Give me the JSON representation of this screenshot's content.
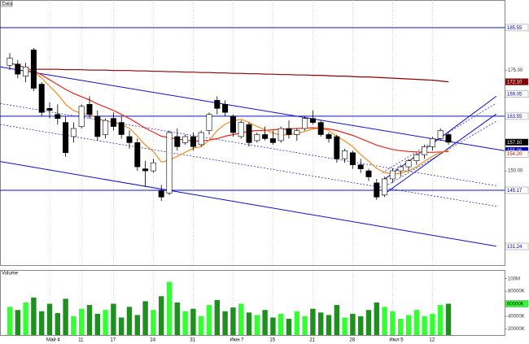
{
  "chart_data": {
    "type": "candlestick",
    "label": "Data",
    "categories": [
      null,
      null,
      null,
      null,
      null,
      "Май 4",
      null,
      null,
      null,
      "11",
      null,
      null,
      null,
      "17",
      null,
      null,
      null,
      null,
      "24",
      null,
      null,
      null,
      null,
      "31",
      null,
      null,
      null,
      null,
      "Июн 7",
      null,
      null,
      null,
      null,
      "15",
      null,
      null,
      null,
      null,
      "21",
      null,
      null,
      null,
      null,
      "28",
      null,
      null,
      null,
      null,
      "Июл 5",
      null,
      null,
      null,
      null,
      "12",
      null,
      null
    ],
    "open": [
      176.2,
      176.5,
      173.5,
      180.0,
      171.5,
      165.5,
      164.0,
      162.0,
      158.5,
      161.0,
      166.5,
      163.5,
      159.0,
      163.0,
      162.0,
      158.5,
      157.0,
      150.5,
      150.0,
      145.0,
      144.5,
      158.5,
      157.0,
      158.5,
      156.5,
      160.0,
      167.5,
      166.5,
      163.5,
      158.5,
      161.5,
      157.5,
      159.0,
      158.0,
      157.5,
      160.5,
      159.0,
      160.5,
      163.0,
      162.0,
      159.0,
      158.5,
      153.0,
      154.5,
      151.5,
      150.0,
      147.0,
      144.0,
      148.0,
      150.0,
      151.0,
      152.5,
      154.0,
      156.0,
      158.0,
      159.0
    ],
    "high": [
      179.2,
      177.5,
      176.8,
      180.5,
      172.0,
      167.0,
      166.5,
      163.5,
      162.0,
      166.5,
      168.5,
      165.0,
      163.0,
      164.5,
      163.5,
      160.0,
      158.0,
      152.5,
      153.0,
      146.5,
      160.0,
      160.5,
      159.0,
      159.5,
      160.0,
      164.5,
      168.5,
      167.5,
      164.0,
      162.5,
      162.0,
      159.5,
      161.0,
      160.0,
      161.0,
      162.5,
      160.5,
      163.5,
      165.0,
      162.5,
      159.5,
      159.0,
      155.5,
      155.0,
      153.0,
      150.5,
      148.0,
      148.5,
      150.5,
      151.5,
      153.0,
      154.5,
      156.5,
      158.5,
      160.5,
      159.5
    ],
    "low": [
      175.0,
      173.0,
      172.0,
      169.8,
      163.5,
      163.0,
      161.5,
      153.5,
      157.0,
      160.5,
      163.0,
      157.5,
      158.0,
      160.0,
      158.0,
      155.5,
      150.0,
      146.0,
      149.5,
      142.5,
      144.0,
      155.0,
      156.5,
      155.0,
      156.0,
      159.0,
      164.0,
      163.5,
      158.5,
      158.0,
      156.0,
      157.0,
      157.5,
      156.5,
      157.0,
      158.0,
      157.5,
      160.0,
      161.5,
      158.5,
      157.0,
      152.0,
      152.0,
      150.5,
      149.5,
      147.5,
      142.8,
      143.5,
      147.0,
      148.5,
      150.0,
      151.5,
      153.0,
      155.0,
      157.5,
      156.5
    ],
    "close": [
      178.0,
      174.0,
      175.8,
      170.5,
      164.5,
      165.0,
      163.0,
      154.5,
      160.5,
      166.0,
      164.0,
      158.5,
      162.5,
      161.0,
      159.0,
      157.0,
      151.0,
      150.0,
      152.0,
      143.5,
      159.5,
      156.0,
      158.5,
      156.0,
      159.5,
      164.0,
      165.5,
      164.5,
      159.5,
      162.0,
      157.0,
      159.0,
      158.0,
      157.0,
      160.5,
      159.0,
      160.0,
      163.0,
      162.0,
      159.0,
      158.0,
      153.0,
      155.0,
      151.5,
      150.5,
      148.5,
      143.5,
      148.0,
      150.0,
      151.0,
      152.5,
      154.0,
      156.0,
      158.0,
      160.0,
      157.1
    ],
    "up_color": "#ffffff",
    "down_color": "#000000",
    "ylim": [
      126.6,
      192.4
    ],
    "yticks": [
      {
        "value": 175,
        "label": "175.00"
      },
      {
        "value": 150,
        "label": "150.00"
      }
    ],
    "price_labels": [
      {
        "value": 185.55,
        "label": "185.55",
        "bg": "#ffffff",
        "fg": "#0000aa",
        "line": true
      },
      {
        "value": 172.1,
        "label": "172.10",
        "bg": "#8b0000",
        "fg": "#ffffff",
        "line": false
      },
      {
        "value": 169.05,
        "label": "169.05",
        "bg": "#ffffff",
        "fg": "#0000aa",
        "line": false
      },
      {
        "value": 163.55,
        "label": "163.55",
        "bg": "#ffffff",
        "fg": "#0000aa",
        "line": true
      },
      {
        "value": 157.1,
        "label": "157.10",
        "bg": "#000000",
        "fg": "#ffffff",
        "line": false
      },
      {
        "value": 155.06,
        "label": "155.06",
        "bg": "#0000cc",
        "fg": "#ffffff",
        "line": false
      },
      {
        "value": 154.2,
        "label": "154.20",
        "bg": "#ffffff",
        "fg": "#cc0000",
        "line": false
      },
      {
        "value": 145.17,
        "label": "145.17",
        "bg": "#ffffff",
        "fg": "#0000aa",
        "line": true
      },
      {
        "value": 131.24,
        "label": "131.24",
        "bg": "#ffffff",
        "fg": "#0000aa",
        "line": false
      }
    ],
    "ma": [
      {
        "color": "#8b0000",
        "values": [
          null,
          null,
          null,
          175.2,
          175.2,
          175.2,
          175.2,
          175.1,
          175.1,
          175.1,
          175.0,
          175.0,
          175.0,
          174.9,
          174.9,
          174.9,
          174.8,
          174.8,
          174.7,
          174.7,
          174.6,
          174.6,
          174.5,
          174.5,
          174.4,
          174.4,
          174.3,
          174.3,
          174.2,
          174.2,
          174.1,
          174.1,
          174.0,
          174.0,
          173.9,
          173.9,
          173.8,
          173.8,
          173.7,
          173.7,
          173.6,
          173.5,
          173.5,
          173.4,
          173.3,
          173.3,
          173.2,
          173.1,
          173.0,
          172.9,
          172.8,
          172.7,
          172.6,
          172.5,
          172.3,
          172.1
        ]
      },
      {
        "color": "#e8281e",
        "values": [
          176.8,
          176.2,
          175.6,
          174.8,
          173.8,
          172.6,
          171.4,
          170.2,
          169.2,
          168.4,
          167.6,
          166.6,
          165.8,
          165.0,
          164.0,
          163.0,
          161.8,
          160.6,
          159.6,
          158.6,
          158.2,
          157.9,
          157.6,
          157.4,
          157.4,
          157.6,
          158.0,
          158.6,
          159.0,
          159.4,
          159.8,
          160.0,
          160.0,
          160.2,
          160.3,
          160.4,
          160.5,
          160.6,
          160.7,
          160.6,
          160.4,
          160.0,
          159.4,
          158.8,
          158.0,
          157.2,
          156.4,
          155.8,
          155.3,
          155.0,
          154.8,
          154.7,
          154.6,
          154.6,
          154.7,
          154.8
        ]
      },
      {
        "color": "#f08c1e",
        "values": [
          null,
          null,
          175.0,
          174.6,
          173.0,
          171.0,
          169.0,
          166.5,
          165.0,
          164.2,
          164.0,
          163.0,
          162.4,
          162.0,
          161.4,
          160.6,
          158.6,
          156.4,
          154.8,
          152.2,
          152.6,
          153.6,
          154.6,
          155.6,
          156.0,
          157.6,
          160.0,
          161.6,
          162.4,
          162.8,
          162.0,
          161.0,
          160.2,
          159.4,
          158.8,
          159.0,
          159.2,
          159.8,
          160.4,
          160.6,
          160.0,
          158.6,
          157.4,
          156.0,
          154.0,
          152.4,
          150.6,
          149.6,
          149.2,
          149.4,
          150.0,
          151.0,
          152.4,
          153.6,
          154.6,
          155.2
        ]
      }
    ],
    "trendlines": [
      {
        "x": [
          -1.2,
          62
        ],
        "y": [
          175.8,
          155.0
        ],
        "color": "#1010c0",
        "dashed": false
      },
      {
        "x": [
          -1.2,
          61
        ],
        "y": [
          152.3,
          131.3
        ],
        "color": "#1010c0",
        "dashed": false
      },
      {
        "x": [
          -1.2,
          61
        ],
        "y": [
          166.7,
          146.3
        ],
        "color": "#1010c0",
        "dashed": true
      },
      {
        "x": [
          -1.2,
          61
        ],
        "y": [
          161.5,
          141.2
        ],
        "color": "#1010c0",
        "dashed": true
      },
      {
        "x": [
          46.7,
          61
        ],
        "y": [
          147.5,
          168.5
        ],
        "color": "#1010c0",
        "dashed": false
      },
      {
        "x": [
          46.7,
          61
        ],
        "y": [
          143.9,
          164.1
        ],
        "color": "#1010c0",
        "dashed": false
      },
      {
        "x": [
          46.7,
          61
        ],
        "y": [
          149.5,
          166.8
        ],
        "color": "#1010c0",
        "dashed": true
      },
      {
        "x": [
          46.7,
          61
        ],
        "y": [
          145.7,
          162.3
        ],
        "color": "#1010c0",
        "dashed": true
      }
    ],
    "volume": {
      "name": "Volume",
      "up_color": "#33ff33",
      "down_color": "#1f8f1f",
      "values": [
        55000000,
        50000000,
        62000000,
        70000000,
        48000000,
        60000000,
        45000000,
        68000000,
        40000000,
        52000000,
        58000000,
        44000000,
        50000000,
        60000000,
        38000000,
        55000000,
        42000000,
        64000000,
        50000000,
        72000000,
        95000000,
        62000000,
        48000000,
        52000000,
        40000000,
        58000000,
        66000000,
        48000000,
        54000000,
        60000000,
        46000000,
        42000000,
        50000000,
        38000000,
        44000000,
        36000000,
        48000000,
        40000000,
        52000000,
        46000000,
        42000000,
        58000000,
        38000000,
        44000000,
        40000000,
        50000000,
        62000000,
        55000000,
        48000000,
        36000000,
        42000000,
        50000000,
        40000000,
        44000000,
        58000000,
        60000000
      ],
      "ylim": [
        10000000,
        110000000
      ],
      "yticks": [
        {
          "value": 100000000,
          "label": "100M"
        },
        {
          "value": 80000000,
          "label": "80000K"
        },
        {
          "value": 40000000,
          "label": "40000K"
        },
        {
          "value": 20000000,
          "label": "20000K"
        }
      ],
      "current": {
        "value": 60000000,
        "label": "60000K"
      }
    }
  }
}
